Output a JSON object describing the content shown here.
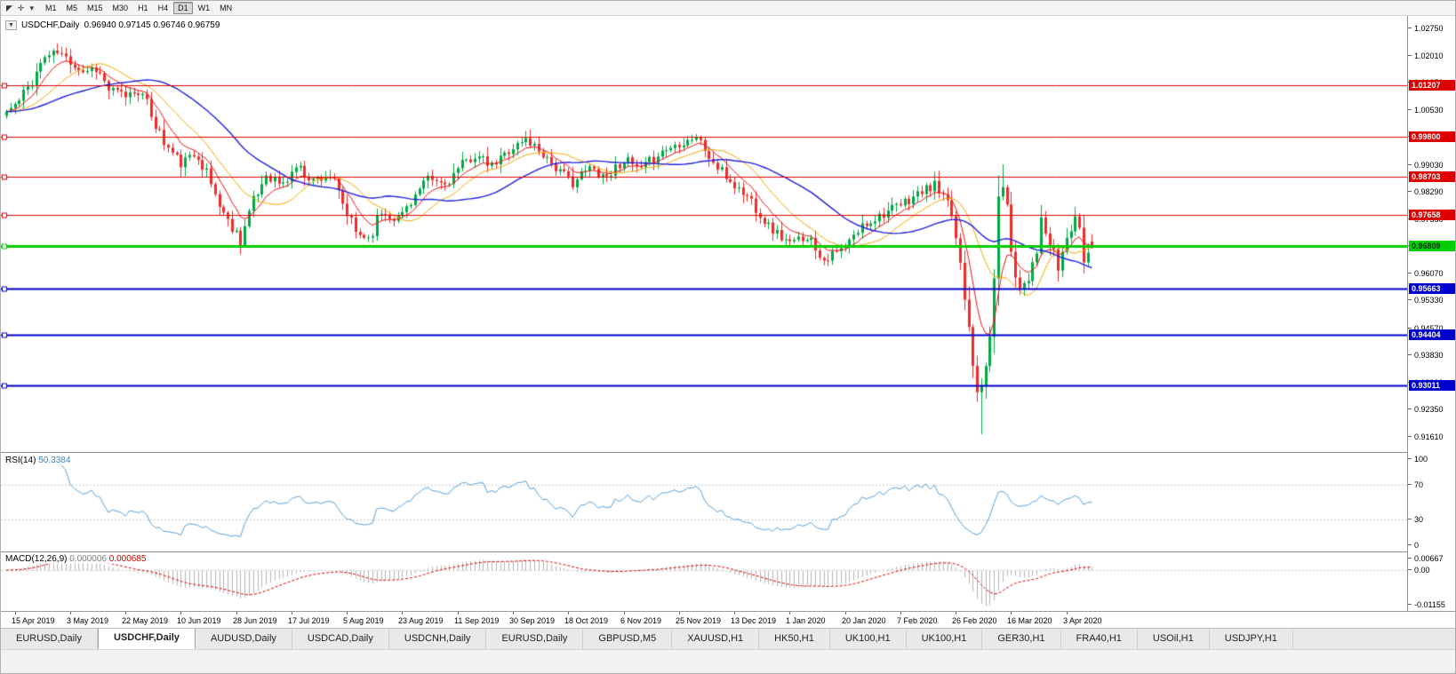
{
  "toolbar": {
    "timeframes": [
      "M1",
      "M5",
      "M15",
      "M30",
      "H1",
      "H4",
      "D1",
      "W1",
      "MN"
    ],
    "active_timeframe": "D1"
  },
  "chart": {
    "title": "USDCHF,Daily",
    "ohlc": "0.96940  0.97145  0.96746  0.96759",
    "collapse_glyph": "▼"
  },
  "rsi": {
    "label": "RSI(14)",
    "value": "50.3384"
  },
  "macd": {
    "label": "MACD(12,26,9)",
    "value_main": "0.000006",
    "value_signal": "0.000685"
  },
  "tabs": [
    {
      "label": "EURUSD,Daily",
      "active": false
    },
    {
      "label": "USDCHF,Daily",
      "active": true
    },
    {
      "label": "AUDUSD,Daily",
      "active": false
    },
    {
      "label": "USDCAD,Daily",
      "active": false
    },
    {
      "label": "USDCNH,Daily",
      "active": false
    },
    {
      "label": "EURUSD,Daily",
      "active": false
    },
    {
      "label": "GBPUSD,M5",
      "active": false
    },
    {
      "label": "XAUUSD,H1",
      "active": false
    },
    {
      "label": "HK50,H1",
      "active": false
    },
    {
      "label": "UK100,H1",
      "active": false
    },
    {
      "label": "UK100,H1",
      "active": false
    },
    {
      "label": "GER30,H1",
      "active": false
    },
    {
      "label": "FRA40,H1",
      "active": false
    },
    {
      "label": "USOil,H1",
      "active": false
    },
    {
      "label": "USDJPY,H1",
      "active": false
    }
  ],
  "chart_data": {
    "type": "candlestick",
    "symbol": "USDCHF",
    "timeframe": "Daily",
    "last_ohlc": {
      "open": 0.9694,
      "high": 0.97145,
      "low": 0.96746,
      "close": 0.96759
    },
    "visible_price_range": {
      "top": 1.0275,
      "bottom": 0.9161
    },
    "price_axis_ticks": [
      "1.02750",
      "1.02010",
      "1.01270",
      "1.00530",
      "0.99790",
      "0.99030",
      "0.98290",
      "0.97550",
      "0.96810",
      "0.96070",
      "0.95330",
      "0.94570",
      "0.93830",
      "0.93090",
      "0.92350",
      "0.91610"
    ],
    "horizontal_lines": [
      {
        "price": 1.01207,
        "label": "1.01207",
        "color": "#dd0000",
        "width": 1,
        "text_color": "#ffffff"
      },
      {
        "price": 0.998,
        "label": "0.99800",
        "color": "#dd0000",
        "width": 1,
        "text_color": "#ffffff"
      },
      {
        "price": 0.98703,
        "label": "0.98703",
        "color": "#dd0000",
        "width": 1,
        "text_color": "#ffffff"
      },
      {
        "price": 0.97658,
        "label": "0.97658",
        "color": "#dd0000",
        "width": 1,
        "text_color": "#ffffff"
      },
      {
        "price": 0.96809,
        "label": "0.96809",
        "color": "#00cc00",
        "width": 3,
        "text_color": "#00320a"
      },
      {
        "price": 0.95663,
        "label": "0.95663",
        "color": "#0000cc",
        "width": 2,
        "text_color": "#ffffff"
      },
      {
        "price": 0.94404,
        "label": "0.94404",
        "color": "#0000cc",
        "width": 2,
        "text_color": "#ffffff"
      },
      {
        "price": 0.93011,
        "label": "0.93011",
        "color": "#0000cc",
        "width": 2,
        "text_color": "#ffffff"
      }
    ],
    "date_labels": [
      "15 Apr 2019",
      "3 May 2019",
      "22 May 2019",
      "10 Jun 2019",
      "28 Jun 2019",
      "17 Jul 2019",
      "5 Aug 2019",
      "23 Aug 2019",
      "11 Sep 2019",
      "30 Sep 2019",
      "18 Oct 2019",
      "6 Nov 2019",
      "25 Nov 2019",
      "13 Dec 2019",
      "1 Jan 2020",
      "20 Jan 2020",
      "7 Feb 2020",
      "26 Feb 2020",
      "16 Mar 2020",
      "3 Apr 2020"
    ],
    "candles": {
      "count": 256,
      "up_color": "#00a843",
      "down_color": "#ee2c2c",
      "noise": 0.0011,
      "seed": 11,
      "close_keyframes": [
        [
          0,
          1.0048
        ],
        [
          3,
          1.0075
        ],
        [
          6,
          1.0135
        ],
        [
          9,
          1.0198
        ],
        [
          12,
          1.021
        ],
        [
          15,
          1.0186
        ],
        [
          18,
          1.0158
        ],
        [
          21,
          1.017
        ],
        [
          24,
          1.0108
        ],
        [
          28,
          1.0092
        ],
        [
          31,
          1.011
        ],
        [
          34,
          1.0042
        ],
        [
          37,
          0.9962
        ],
        [
          41,
          0.9906
        ],
        [
          45,
          0.9936
        ],
        [
          49,
          0.9822
        ],
        [
          52,
          0.9748
        ],
        [
          55,
          0.9704
        ],
        [
          57,
          0.9772
        ],
        [
          61,
          0.9878
        ],
        [
          65,
          0.9846
        ],
        [
          68,
          0.99
        ],
        [
          72,
          0.9862
        ],
        [
          76,
          0.9876
        ],
        [
          79,
          0.9792
        ],
        [
          82,
          0.9718
        ],
        [
          85,
          0.9704
        ],
        [
          88,
          0.9774
        ],
        [
          92,
          0.9756
        ],
        [
          95,
          0.9806
        ],
        [
          99,
          0.9862
        ],
        [
          103,
          0.985
        ],
        [
          107,
          0.9902
        ],
        [
          110,
          0.993
        ],
        [
          114,
          0.9896
        ],
        [
          118,
          0.9944
        ],
        [
          122,
          0.9972
        ],
        [
          126,
          0.9936
        ],
        [
          130,
          0.9882
        ],
        [
          133,
          0.9856
        ],
        [
          137,
          0.9894
        ],
        [
          141,
          0.9872
        ],
        [
          145,
          0.9918
        ],
        [
          149,
          0.9886
        ],
        [
          153,
          0.9934
        ],
        [
          158,
          0.9962
        ],
        [
          162,
          0.9982
        ],
        [
          166,
          0.9906
        ],
        [
          171,
          0.9846
        ],
        [
          175,
          0.9806
        ],
        [
          179,
          0.9736
        ],
        [
          184,
          0.9686
        ],
        [
          188,
          0.9712
        ],
        [
          192,
          0.9646
        ],
        [
          197,
          0.9676
        ],
        [
          201,
          0.9736
        ],
        [
          205,
          0.9766
        ],
        [
          210,
          0.9792
        ],
        [
          214,
          0.9824
        ],
        [
          218,
          0.9846
        ],
        [
          222,
          0.977
        ],
        [
          224,
          0.964
        ],
        [
          226,
          0.948
        ],
        [
          227,
          0.938
        ],
        [
          228,
          0.93
        ],
        [
          229,
          0.9272
        ],
        [
          231,
          0.943
        ],
        [
          233,
          0.979
        ],
        [
          234,
          0.9868
        ],
        [
          236,
          0.968
        ],
        [
          238,
          0.9565
        ],
        [
          240,
          0.9604
        ],
        [
          242,
          0.9684
        ],
        [
          243,
          0.9742
        ],
        [
          245,
          0.9682
        ],
        [
          247,
          0.9622
        ],
        [
          249,
          0.9702
        ],
        [
          251,
          0.9762
        ],
        [
          252,
          0.9704
        ],
        [
          253,
          0.9644
        ],
        [
          254,
          0.9664
        ],
        [
          255,
          0.96759
        ]
      ],
      "low_overrides": {
        "55": 0.9694,
        "85": 0.9692,
        "229": 0.9168
      },
      "high_overrides": {
        "12": 1.0226,
        "234": 0.9904
      }
    },
    "moving_averages": [
      {
        "type": "ema",
        "period": 8,
        "color": "#ee1111",
        "width": 1
      },
      {
        "type": "sma",
        "period": 16,
        "color": "#f5a800",
        "width": 1
      },
      {
        "type": "sma",
        "period": 34,
        "color": "#2020dd",
        "width": 1.4
      }
    ],
    "rsi_indicator": {
      "period": 14,
      "current": 50.3384,
      "color": "#58a0d8",
      "axis_labels": [
        "100",
        "70",
        "30",
        "0"
      ],
      "level_lines": [
        70,
        30
      ]
    },
    "macd_indicator": {
      "fast": 12,
      "slow": 26,
      "signal": 9,
      "current_main": 6e-06,
      "current_signal": 0.000685,
      "axis_labels": [
        "0.00667",
        "0.00",
        "-0.01155"
      ],
      "hist_color": "#b4b4b4",
      "signal_color": "#dd0000"
    }
  }
}
